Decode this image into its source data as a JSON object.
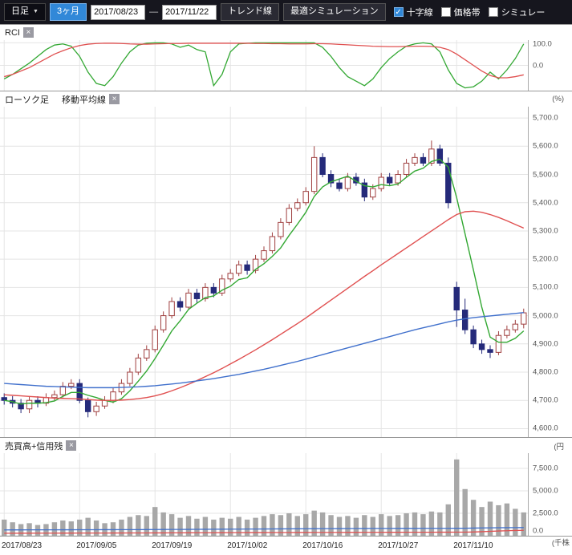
{
  "icons": {
    "close": "×",
    "caret": "▼",
    "check": "✓"
  },
  "toolbar": {
    "period_label": "日足",
    "range_label": "3ヶ月",
    "date_from": "2017/08/23",
    "date_separator": "—",
    "date_to": "2017/11/22",
    "trend_label": "トレンド線",
    "sim_label": "最適シミュレーション",
    "checkbox_crosshair": "十字線",
    "checkbox_priceband": "価格帯",
    "checkbox_simulation": "シミュレー",
    "crosshair_checked": true
  },
  "panels": {
    "rci": {
      "title": "RCI",
      "unit": "(%)"
    },
    "main": {
      "label_candle": "ローソク足",
      "label_ma": "移動平均線",
      "unit": "(円"
    },
    "volume": {
      "title": "売買高+信用残",
      "unit": "(千株"
    }
  },
  "x_axis": {
    "count": 63,
    "labels": [
      {
        "i": 0,
        "text": "2017/08/23"
      },
      {
        "i": 9,
        "text": "2017/09/05"
      },
      {
        "i": 18,
        "text": "2017/09/19"
      },
      {
        "i": 27,
        "text": "2017/10/02"
      },
      {
        "i": 36,
        "text": "2017/10/16"
      },
      {
        "i": 45,
        "text": "2017/10/27"
      },
      {
        "i": 54,
        "text": "2017/11/10"
      }
    ]
  },
  "chart_data": [
    {
      "type": "line",
      "name": "RCI",
      "ylim": [
        -112,
        112
      ],
      "yticks": [
        {
          "v": 100,
          "label": "100.0"
        },
        {
          "v": 0,
          "label": "0.0"
        }
      ],
      "series": [
        {
          "name": "rci-short",
          "color": "#33a833",
          "values": [
            -60,
            -40,
            -15,
            10,
            40,
            70,
            90,
            95,
            85,
            40,
            -30,
            -80,
            -90,
            -50,
            10,
            60,
            90,
            98,
            100,
            100,
            95,
            80,
            90,
            70,
            60,
            -90,
            -40,
            60,
            95,
            98,
            100,
            100,
            100,
            100,
            100,
            100,
            100,
            100,
            80,
            40,
            -10,
            -50,
            -70,
            -90,
            -60,
            -10,
            30,
            60,
            85,
            95,
            100,
            95,
            60,
            -20,
            -80,
            -100,
            -95,
            -70,
            -30,
            -60,
            -20,
            30,
            95
          ]
        },
        {
          "name": "rci-long",
          "color": "#e05050",
          "values": [
            -50,
            -40,
            -25,
            -10,
            10,
            30,
            50,
            65,
            78,
            88,
            94,
            97,
            98,
            98,
            97,
            95,
            94,
            94,
            95,
            96,
            97,
            97,
            98,
            98,
            98,
            98,
            98,
            98,
            98,
            98,
            97,
            97,
            96,
            96,
            95,
            95,
            95,
            96,
            96,
            95,
            93,
            91,
            89,
            87,
            85,
            84,
            83,
            83,
            84,
            85,
            85,
            84,
            80,
            70,
            50,
            25,
            0,
            -25,
            -45,
            -55,
            -55,
            -50,
            -42
          ]
        }
      ]
    },
    {
      "type": "candlestick",
      "name": "price",
      "ylim": [
        4570,
        5740
      ],
      "yticks": [
        {
          "v": 5700,
          "label": "5,700.0"
        },
        {
          "v": 5600,
          "label": "5,600.0"
        },
        {
          "v": 5500,
          "label": "5,500.0"
        },
        {
          "v": 5400,
          "label": "5,400.0"
        },
        {
          "v": 5300,
          "label": "5,300.0"
        },
        {
          "v": 5200,
          "label": "5,200.0"
        },
        {
          "v": 5100,
          "label": "5,100.0"
        },
        {
          "v": 5000,
          "label": "5,000.0"
        },
        {
          "v": 4900,
          "label": "4,900.0"
        },
        {
          "v": 4800,
          "label": "4,800.0"
        },
        {
          "v": 4700,
          "label": "4,700.0"
        },
        {
          "v": 4600,
          "label": "4,600.0"
        }
      ],
      "colors": {
        "up_fill": "#ffffff",
        "up_stroke": "#a04040",
        "down_fill": "#252a7a",
        "down_stroke": "#252a7a"
      },
      "open": [
        4710,
        4700,
        4690,
        4670,
        4700,
        4690,
        4710,
        4720,
        4750,
        4760,
        4700,
        4660,
        4680,
        4700,
        4730,
        4760,
        4800,
        4850,
        4880,
        4950,
        5000,
        5050,
        5030,
        5080,
        5060,
        5100,
        5080,
        5130,
        5150,
        5180,
        5160,
        5200,
        5230,
        5280,
        5330,
        5380,
        5400,
        5440,
        5560,
        5500,
        5470,
        5450,
        5490,
        5470,
        5420,
        5450,
        5490,
        5470,
        5500,
        5540,
        5560,
        5540,
        5590,
        5540,
        5100,
        5020,
        4950,
        4900,
        4880,
        4870,
        4930,
        4950,
        4970
      ],
      "high": [
        4725,
        4715,
        4705,
        4715,
        4715,
        4725,
        4735,
        4765,
        4775,
        4775,
        4710,
        4695,
        4715,
        4745,
        4775,
        4815,
        4865,
        4895,
        4965,
        5015,
        5065,
        5065,
        5095,
        5095,
        5115,
        5115,
        5145,
        5165,
        5195,
        5195,
        5215,
        5245,
        5295,
        5345,
        5395,
        5415,
        5455,
        5600,
        5575,
        5515,
        5485,
        5505,
        5505,
        5485,
        5465,
        5505,
        5505,
        5515,
        5555,
        5575,
        5575,
        5620,
        5605,
        5560,
        5120,
        5060,
        4965,
        4915,
        4895,
        4945,
        4965,
        4985,
        5025
      ],
      "low": [
        4685,
        4675,
        4655,
        4655,
        4675,
        4680,
        4700,
        4710,
        4740,
        4690,
        4640,
        4645,
        4670,
        4690,
        4720,
        4750,
        4790,
        4840,
        4870,
        4940,
        4990,
        5015,
        5020,
        5045,
        5050,
        5065,
        5070,
        5120,
        5140,
        5145,
        5150,
        5190,
        5220,
        5270,
        5320,
        5370,
        5390,
        5430,
        5490,
        5455,
        5440,
        5440,
        5460,
        5405,
        5410,
        5440,
        5460,
        5460,
        5490,
        5530,
        5530,
        5530,
        5530,
        5380,
        4960,
        4935,
        4885,
        4865,
        4850,
        4860,
        4920,
        4940,
        4955
      ],
      "close": [
        4700,
        4690,
        4670,
        4700,
        4690,
        4710,
        4720,
        4750,
        4760,
        4700,
        4660,
        4680,
        4700,
        4730,
        4760,
        4800,
        4850,
        4880,
        4950,
        5000,
        5050,
        5030,
        5080,
        5060,
        5100,
        5080,
        5130,
        5150,
        5180,
        5160,
        5200,
        5230,
        5280,
        5330,
        5380,
        5400,
        5440,
        5560,
        5500,
        5470,
        5450,
        5490,
        5470,
        5420,
        5450,
        5490,
        5470,
        5500,
        5540,
        5560,
        5540,
        5590,
        5540,
        5400,
        5020,
        4950,
        4900,
        4880,
        4870,
        4930,
        4950,
        4970,
        5010
      ],
      "ma": [
        {
          "name": "ma-short",
          "color": "#33a833",
          "values": [
            4700,
            4695,
            4687,
            4690,
            4690,
            4692,
            4698,
            4714,
            4728,
            4728,
            4718,
            4710,
            4700,
            4694,
            4706,
            4734,
            4768,
            4804,
            4848,
            4896,
            4946,
            4982,
            5022,
            5044,
            5064,
            5070,
            5090,
            5104,
            5128,
            5134,
            5164,
            5184,
            5210,
            5240,
            5284,
            5324,
            5366,
            5422,
            5456,
            5474,
            5484,
            5494,
            5476,
            5460,
            5456,
            5464,
            5460,
            5466,
            5490,
            5512,
            5522,
            5546,
            5554,
            5526,
            5418,
            5290,
            5162,
            5030,
            4924,
            4906,
            4906,
            4920,
            4946
          ]
        },
        {
          "name": "ma-mid",
          "color": "#e05050",
          "values": [
            4720,
            4718,
            4716,
            4714,
            4712,
            4710,
            4708,
            4707,
            4706,
            4705,
            4703,
            4701,
            4700,
            4700,
            4701,
            4703,
            4706,
            4710,
            4716,
            4724,
            4734,
            4745,
            4757,
            4770,
            4784,
            4798,
            4813,
            4829,
            4845,
            4862,
            4879,
            4897,
            4915,
            4934,
            4953,
            4972,
            4992,
            5013,
            5034,
            5055,
            5076,
            5097,
            5118,
            5139,
            5159,
            5180,
            5200,
            5220,
            5240,
            5260,
            5280,
            5300,
            5320,
            5340,
            5358,
            5368,
            5370,
            5366,
            5358,
            5348,
            5336,
            5323,
            5310
          ]
        },
        {
          "name": "ma-long",
          "color": "#4070cc",
          "values": [
            4760,
            4758,
            4756,
            4754,
            4752,
            4750,
            4749,
            4748,
            4747,
            4746,
            4745,
            4745,
            4745,
            4745,
            4746,
            4747,
            4748,
            4750,
            4752,
            4755,
            4758,
            4761,
            4765,
            4769,
            4773,
            4777,
            4782,
            4787,
            4792,
            4798,
            4804,
            4810,
            4817,
            4824,
            4831,
            4838,
            4846,
            4854,
            4862,
            4870,
            4878,
            4886,
            4894,
            4902,
            4910,
            4918,
            4926,
            4934,
            4942,
            4950,
            4957,
            4964,
            4971,
            4978,
            4984,
            4989,
            4993,
            4996,
            4999,
            5002,
            5005,
            5008,
            5011
          ]
        }
      ]
    },
    {
      "type": "bar",
      "name": "volume",
      "ylim": [
        0,
        9200
      ],
      "yticks": [
        {
          "v": 7500,
          "label": "7,500.0"
        },
        {
          "v": 5000,
          "label": "5,000.0"
        },
        {
          "v": 2500,
          "label": "2,500.0"
        },
        {
          "v": 0,
          "label": "0.0"
        }
      ],
      "bar_color": "#a8a8a8",
      "values": [
        1800,
        1500,
        1300,
        1400,
        1200,
        1300,
        1500,
        1700,
        1600,
        1800,
        2000,
        1700,
        1400,
        1500,
        1800,
        2100,
        2300,
        2200,
        3200,
        2600,
        2400,
        2000,
        2200,
        1900,
        2100,
        1800,
        2000,
        1900,
        2100,
        1800,
        2000,
        2200,
        2400,
        2300,
        2500,
        2200,
        2400,
        2800,
        2600,
        2300,
        2100,
        2200,
        2000,
        2300,
        2100,
        2400,
        2200,
        2300,
        2500,
        2600,
        2400,
        2700,
        2600,
        3500,
        8500,
        5200,
        4000,
        3200,
        3800,
        3400,
        3600,
        3000,
        2600
      ],
      "lines": [
        {
          "name": "margin-buy",
          "color": "#4070cc",
          "values": [
            650,
            652,
            654,
            656,
            658,
            660,
            662,
            664,
            666,
            668,
            670,
            672,
            674,
            676,
            678,
            680,
            684,
            688,
            692,
            696,
            700,
            705,
            710,
            715,
            720,
            725,
            730,
            735,
            740,
            745,
            750,
            755,
            760,
            765,
            770,
            775,
            780,
            785,
            790,
            795,
            800,
            803,
            806,
            809,
            812,
            815,
            817,
            819,
            821,
            823,
            825,
            826,
            827,
            828,
            830,
            840,
            855,
            870,
            882,
            892,
            900,
            906,
            910
          ]
        },
        {
          "name": "margin-sell",
          "color": "#e05050",
          "values": [
            280,
            282,
            284,
            286,
            288,
            290,
            292,
            294,
            296,
            298,
            300,
            302,
            304,
            306,
            308,
            310,
            312,
            314,
            317,
            320,
            323,
            326,
            329,
            332,
            335,
            338,
            341,
            344,
            347,
            350,
            352,
            354,
            356,
            358,
            360,
            362,
            364,
            366,
            368,
            370,
            372,
            374,
            376,
            378,
            380,
            382,
            384,
            386,
            388,
            390,
            392,
            394,
            396,
            398,
            400,
            404,
            420,
            450,
            490,
            530,
            560,
            585,
            600
          ]
        }
      ]
    }
  ]
}
